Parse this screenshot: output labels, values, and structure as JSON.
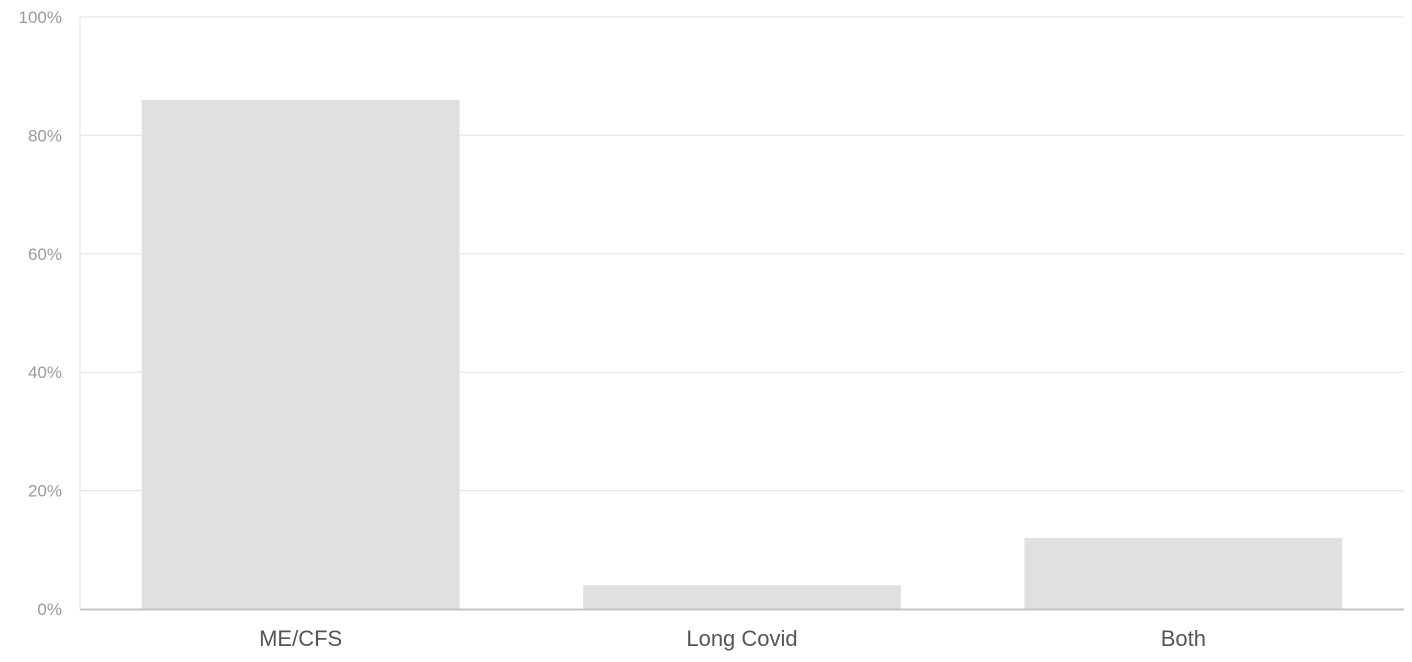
{
  "chart_data": {
    "type": "bar",
    "categories": [
      "ME/CFS",
      "Long Covid",
      "Both"
    ],
    "values": [
      86,
      4,
      12
    ],
    "value_unit": "%",
    "ylim": [
      0,
      100
    ],
    "yticks": [
      "0%",
      "20%",
      "40%",
      "60%",
      "80%",
      "100%"
    ],
    "grid": true,
    "legend": "none",
    "colors": {
      "bar": "#e0e0e0",
      "grid": "#e6e6e6",
      "axis": "#c4c4c4"
    }
  }
}
